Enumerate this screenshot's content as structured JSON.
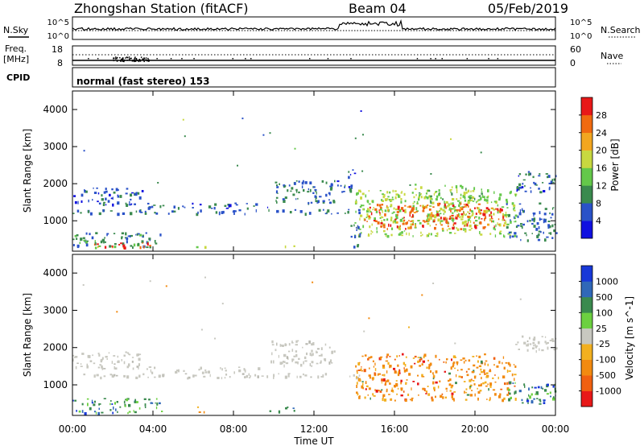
{
  "header": {
    "station": "Zhongshan Station (fitACF)",
    "beam": "Beam 04",
    "date": "05/Feb/2019"
  },
  "sky_panel": {
    "left_label": "N.Sky",
    "left_ticks": [
      "10^5",
      "10^0"
    ],
    "right_ticks": [
      "10^5",
      "10^0"
    ],
    "right_label": "N.Search"
  },
  "freq_panel": {
    "left_label_line1": "Freq.",
    "left_label_line2": "[MHz]",
    "left_ticks": [
      "18",
      "8"
    ],
    "right_ticks": [
      "60",
      "0"
    ],
    "right_label": "Nave"
  },
  "cpid_panel": {
    "label": "CPID",
    "mode_text": "normal (fast stereo) 153"
  },
  "x_axis": {
    "ticks": [
      "00:00",
      "04:00",
      "08:00",
      "12:00",
      "16:00",
      "20:00",
      "00:00"
    ],
    "label": "Time UT"
  },
  "chart_data": [
    {
      "type": "heatmap",
      "quantity": "Power",
      "ylabel": "Slant Range [km]",
      "yticks": [
        "1000",
        "2000",
        "3000",
        "4000"
      ],
      "ylim": [
        180,
        4500
      ],
      "xlim_hours": [
        0,
        24
      ],
      "colorbar": {
        "label": "Power [dB]",
        "ticks": [
          "4",
          "8",
          "12",
          "16",
          "20",
          "24",
          "28"
        ],
        "range": [
          0,
          32
        ],
        "colors": [
          "#1010e0",
          "#2a52c8",
          "#3a8a4e",
          "#64c84a",
          "#c8d840",
          "#f2a620",
          "#f06a10",
          "#e81818"
        ]
      },
      "echo_regions": [
        {
          "t0": 0.0,
          "t1": 14.3,
          "r0": 1200,
          "r1": 1320,
          "level": 8
        },
        {
          "t0": 0.0,
          "t1": 3.5,
          "r0": 1450,
          "r1": 1900,
          "level": 6
        },
        {
          "t0": 3.5,
          "t1": 9.8,
          "r0": 1350,
          "r1": 1500,
          "level": 7
        },
        {
          "t0": 9.8,
          "t1": 13.0,
          "r0": 1500,
          "r1": 2100,
          "level": 8
        },
        {
          "t0": 13.0,
          "t1": 14.0,
          "r0": 1800,
          "r1": 2400,
          "level": 6
        },
        {
          "t0": 0.0,
          "t1": 4.5,
          "r0": 300,
          "r1": 700,
          "level": 9
        },
        {
          "t0": 0.5,
          "t1": 4.0,
          "r0": 300,
          "r1": 420,
          "level": 27
        },
        {
          "t0": 6.0,
          "t1": 6.6,
          "r0": 300,
          "r1": 420,
          "level": 18
        },
        {
          "t0": 9.5,
          "t1": 11.0,
          "r0": 320,
          "r1": 420,
          "level": 16
        },
        {
          "t0": 14.0,
          "t1": 22.0,
          "r0": 600,
          "r1": 1850,
          "level": 16
        },
        {
          "t0": 14.5,
          "t1": 21.5,
          "r0": 800,
          "r1": 1500,
          "level": 27
        },
        {
          "t0": 17.0,
          "t1": 20.5,
          "r0": 1500,
          "r1": 2000,
          "level": 14
        },
        {
          "t0": 21.5,
          "t1": 24.0,
          "r0": 500,
          "r1": 1500,
          "level": 8
        },
        {
          "t0": 22.0,
          "t1": 24.0,
          "r0": 1800,
          "r1": 2350,
          "level": 7
        },
        {
          "t0": 13.8,
          "t1": 14.3,
          "r0": 300,
          "r1": 1000,
          "level": 9
        }
      ]
    },
    {
      "type": "heatmap",
      "quantity": "Velocity",
      "ylabel": "Slant Range [km]",
      "yticks": [
        "1000",
        "2000",
        "3000",
        "4000"
      ],
      "ylim": [
        180,
        4500
      ],
      "xlim_hours": [
        0,
        24
      ],
      "colorbar": {
        "label": "Velocity [m s^-1]",
        "ticks": [
          "1000",
          "500",
          "100",
          "25",
          "-25",
          "-100",
          "-500",
          "-1000"
        ],
        "colors": [
          "#1838d8",
          "#3068b8",
          "#3a8a4e",
          "#6cd040",
          "#c8c8c0",
          "#f2b020",
          "#f28a10",
          "#f06010",
          "#e81818"
        ]
      },
      "echo_regions": [
        {
          "t0": 0.0,
          "t1": 14.3,
          "r0": 1200,
          "r1": 1320,
          "class": "ground"
        },
        {
          "t0": 0.0,
          "t1": 3.5,
          "r0": 1450,
          "r1": 1900,
          "class": "ground"
        },
        {
          "t0": 3.5,
          "t1": 9.8,
          "r0": 1350,
          "r1": 1500,
          "class": "ground"
        },
        {
          "t0": 9.8,
          "t1": 13.0,
          "r0": 1500,
          "r1": 2200,
          "class": "ground"
        },
        {
          "t0": 0.0,
          "t1": 4.5,
          "r0": 250,
          "r1": 650,
          "class": "positive"
        },
        {
          "t0": 6.0,
          "t1": 6.6,
          "r0": 280,
          "r1": 420,
          "class": "negative"
        },
        {
          "t0": 9.5,
          "t1": 11.0,
          "r0": 300,
          "r1": 420,
          "class": "positive"
        },
        {
          "t0": 14.0,
          "t1": 22.0,
          "r0": 600,
          "r1": 1850,
          "class": "negative"
        },
        {
          "t0": 21.5,
          "t1": 24.0,
          "r0": 500,
          "r1": 1100,
          "class": "positive"
        },
        {
          "t0": 22.0,
          "t1": 24.0,
          "r0": 1900,
          "r1": 2350,
          "class": "ground"
        }
      ]
    }
  ]
}
